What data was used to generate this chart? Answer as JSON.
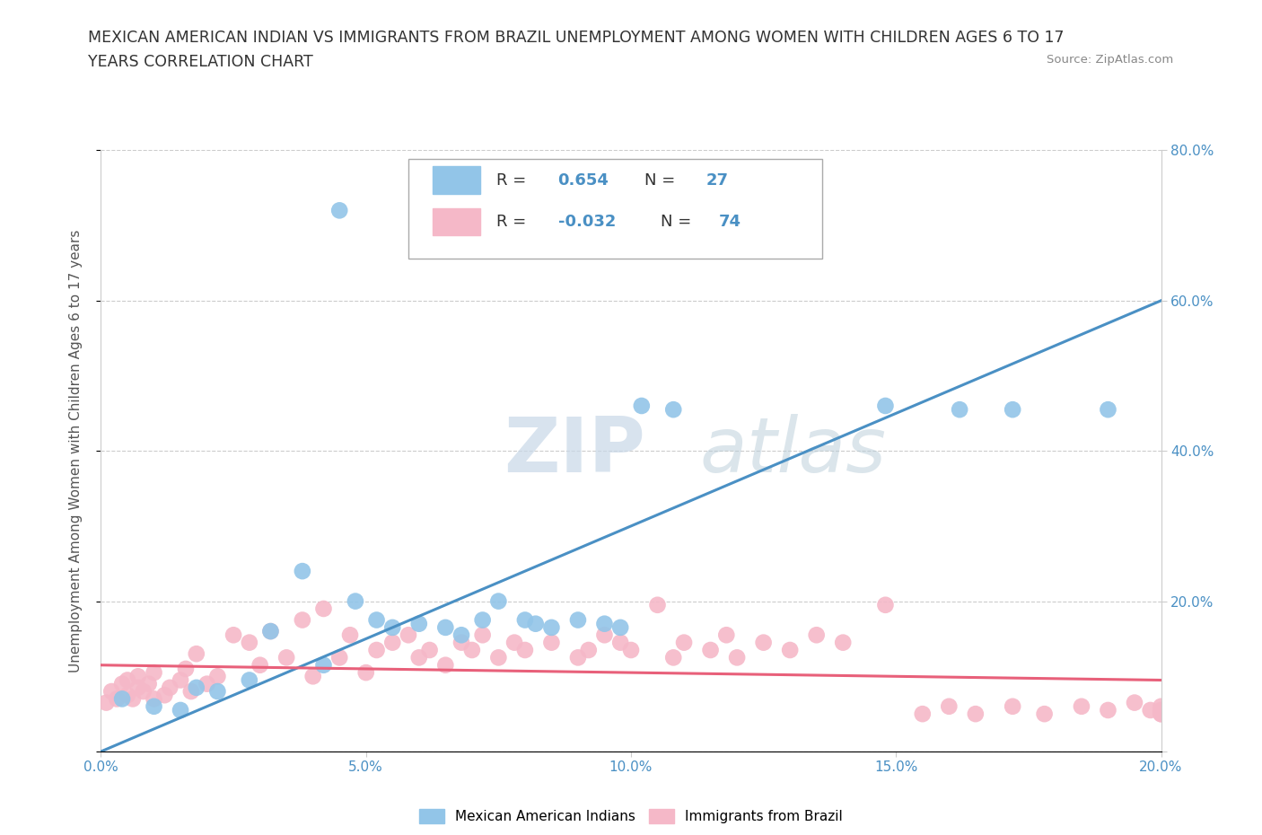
{
  "title_line1": "MEXICAN AMERICAN INDIAN VS IMMIGRANTS FROM BRAZIL UNEMPLOYMENT AMONG WOMEN WITH CHILDREN AGES 6 TO 17",
  "title_line2": "YEARS CORRELATION CHART",
  "source": "Source: ZipAtlas.com",
  "ylabel": "Unemployment Among Women with Children Ages 6 to 17 years",
  "xlim": [
    0.0,
    0.2
  ],
  "ylim": [
    0.0,
    0.8
  ],
  "xticks": [
    0.0,
    0.05,
    0.1,
    0.15,
    0.2
  ],
  "yticks": [
    0.0,
    0.2,
    0.4,
    0.6,
    0.8
  ],
  "xtick_labels": [
    "0.0%",
    "5.0%",
    "10.0%",
    "15.0%",
    "20.0%"
  ],
  "right_ytick_labels": [
    "",
    "20.0%",
    "40.0%",
    "60.0%",
    "80.0%"
  ],
  "blue_color": "#92C5E8",
  "pink_color": "#F5B8C8",
  "blue_line_color": "#4A90C4",
  "pink_line_color": "#E8607A",
  "watermark_zip": "ZIP",
  "watermark_atlas": "atlas",
  "blue_scatter_x": [
    0.004,
    0.01,
    0.015,
    0.018,
    0.022,
    0.028,
    0.032,
    0.038,
    0.042,
    0.048,
    0.052,
    0.055,
    0.06,
    0.065,
    0.068,
    0.072,
    0.075,
    0.08,
    0.082,
    0.085,
    0.09,
    0.095,
    0.098,
    0.102,
    0.108,
    0.148,
    0.162,
    0.172,
    0.19
  ],
  "blue_scatter_y": [
    0.07,
    0.06,
    0.055,
    0.085,
    0.08,
    0.095,
    0.16,
    0.24,
    0.115,
    0.2,
    0.175,
    0.165,
    0.17,
    0.165,
    0.155,
    0.175,
    0.2,
    0.175,
    0.17,
    0.165,
    0.175,
    0.17,
    0.165,
    0.46,
    0.455,
    0.46,
    0.455,
    0.455,
    0.455
  ],
  "blue_outlier_x": [
    0.045
  ],
  "blue_outlier_y": [
    0.72
  ],
  "pink_scatter_x": [
    0.001,
    0.002,
    0.003,
    0.004,
    0.005,
    0.005,
    0.006,
    0.007,
    0.007,
    0.008,
    0.009,
    0.01,
    0.01,
    0.012,
    0.013,
    0.015,
    0.016,
    0.017,
    0.018,
    0.02,
    0.022,
    0.025,
    0.028,
    0.03,
    0.032,
    0.035,
    0.038,
    0.04,
    0.042,
    0.045,
    0.047,
    0.05,
    0.052,
    0.055,
    0.058,
    0.06,
    0.062,
    0.065,
    0.068,
    0.07,
    0.072,
    0.075,
    0.078,
    0.08,
    0.085,
    0.09,
    0.092,
    0.095,
    0.098,
    0.1,
    0.105,
    0.108,
    0.11,
    0.115,
    0.118,
    0.12,
    0.125,
    0.13,
    0.135,
    0.14,
    0.148,
    0.155,
    0.16,
    0.165,
    0.172,
    0.178,
    0.185,
    0.19,
    0.195,
    0.198,
    0.2,
    0.2,
    0.2,
    0.2
  ],
  "pink_scatter_y": [
    0.065,
    0.08,
    0.07,
    0.09,
    0.075,
    0.095,
    0.07,
    0.085,
    0.1,
    0.08,
    0.09,
    0.07,
    0.105,
    0.075,
    0.085,
    0.095,
    0.11,
    0.08,
    0.13,
    0.09,
    0.1,
    0.155,
    0.145,
    0.115,
    0.16,
    0.125,
    0.175,
    0.1,
    0.19,
    0.125,
    0.155,
    0.105,
    0.135,
    0.145,
    0.155,
    0.125,
    0.135,
    0.115,
    0.145,
    0.135,
    0.155,
    0.125,
    0.145,
    0.135,
    0.145,
    0.125,
    0.135,
    0.155,
    0.145,
    0.135,
    0.195,
    0.125,
    0.145,
    0.135,
    0.155,
    0.125,
    0.145,
    0.135,
    0.155,
    0.145,
    0.195,
    0.05,
    0.06,
    0.05,
    0.06,
    0.05,
    0.06,
    0.055,
    0.065,
    0.055,
    0.05,
    0.06,
    0.055,
    0.05
  ],
  "blue_line_x0": 0.0,
  "blue_line_y0": 0.0,
  "blue_line_x1": 0.2,
  "blue_line_y1": 0.6,
  "pink_line_x0": 0.0,
  "pink_line_y0": 0.115,
  "pink_line_x1": 0.2,
  "pink_line_y1": 0.095
}
